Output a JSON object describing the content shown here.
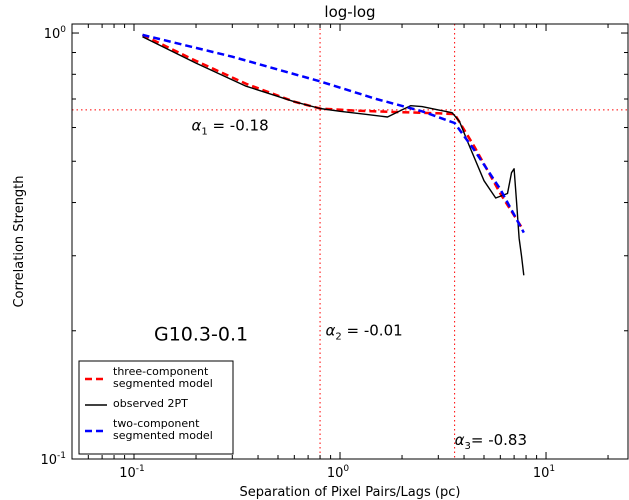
{
  "chart_data": {
    "type": "line",
    "title": "log-log",
    "xlabel": "Separation of Pixel Pairs/Lags (pc)",
    "ylabel": "Correlation Strength",
    "xscale": "log",
    "yscale": "log",
    "xlim": [
      0.05,
      25
    ],
    "ylim": [
      0.1,
      1.05
    ],
    "grid": false,
    "x_ticks": [
      {
        "value": 0.1,
        "base": "10",
        "exp": "-1"
      },
      {
        "value": 1,
        "base": "10",
        "exp": "0"
      },
      {
        "value": 10,
        "base": "10",
        "exp": "1"
      }
    ],
    "y_ticks": [
      {
        "value": 0.1,
        "base": "10",
        "exp": "-1"
      },
      {
        "value": 1,
        "base": "10",
        "exp": "0"
      }
    ],
    "reference_lines": {
      "vertical": [
        0.8,
        3.6
      ],
      "horizontal": [
        0.66
      ]
    },
    "series": [
      {
        "name": "three-component segmented model",
        "color": "#ff0000",
        "style": "dashed",
        "x": [
          0.11,
          0.2,
          0.35,
          0.6,
          0.8,
          1.2,
          2.0,
          3.0,
          3.6,
          4.5,
          6.0,
          7.6
        ],
        "y": [
          0.99,
          0.86,
          0.76,
          0.69,
          0.665,
          0.657,
          0.652,
          0.648,
          0.645,
          0.54,
          0.42,
          0.35
        ]
      },
      {
        "name": "observed 2PT",
        "color": "#000000",
        "style": "solid",
        "x": [
          0.11,
          0.2,
          0.35,
          0.6,
          0.8,
          1.0,
          1.3,
          1.7,
          2.0,
          2.2,
          2.5,
          3.0,
          3.5,
          3.8,
          4.2,
          5.0,
          5.7,
          6.5,
          6.8,
          7.0,
          7.2,
          7.4,
          7.6,
          7.8
        ],
        "y": [
          0.98,
          0.85,
          0.75,
          0.69,
          0.665,
          0.655,
          0.645,
          0.635,
          0.66,
          0.675,
          0.672,
          0.66,
          0.65,
          0.62,
          0.55,
          0.45,
          0.41,
          0.42,
          0.47,
          0.48,
          0.4,
          0.33,
          0.3,
          0.27
        ]
      },
      {
        "name": "two-component segmented model",
        "color": "#0000ff",
        "style": "dashed",
        "x": [
          0.11,
          0.3,
          0.8,
          1.5,
          2.5,
          3.6,
          4.5,
          6.0,
          7.8
        ],
        "y": [
          0.99,
          0.88,
          0.77,
          0.7,
          0.655,
          0.615,
          0.53,
          0.43,
          0.34
        ]
      }
    ],
    "annotations": [
      {
        "greek": "α",
        "sub": "1",
        "text": " = -0.18",
        "x": 0.19,
        "y": 0.59
      },
      {
        "greek": "α",
        "sub": "2",
        "text": " = -0.01",
        "x": 0.85,
        "y": 0.195
      },
      {
        "greek": "α",
        "sub": "3",
        "text": "= -0.83",
        "x": 3.6,
        "y": 0.108
      },
      {
        "text": "G10.3-0.1",
        "x": 0.125,
        "y": 0.19,
        "big": true
      }
    ],
    "legend": {
      "placement": "lower-left",
      "entries": [
        {
          "lines": [
            "three-component",
            "segmented model"
          ],
          "color": "#ff0000",
          "style": "dashed"
        },
        {
          "lines": [
            "observed 2PT"
          ],
          "color": "#000000",
          "style": "solid"
        },
        {
          "lines": [
            "two-component",
            "segmented model"
          ],
          "color": "#0000ff",
          "style": "dashed"
        }
      ]
    }
  }
}
